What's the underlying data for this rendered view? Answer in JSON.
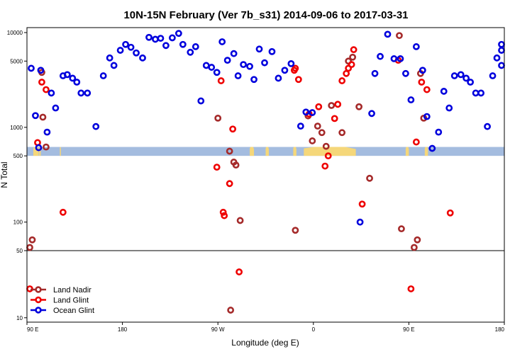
{
  "chart_data": {
    "type": "scatter",
    "title": "10N-15N February (Ver 7b_s31)   2014-09-06 to 2017-03-31",
    "xlabel": "Longitude (deg E)",
    "ylabel": "N Total",
    "x_ticks": [
      {
        "value": 90,
        "label": "90 E"
      },
      {
        "value": 180,
        "label": "180"
      },
      {
        "value": 270,
        "label": "90 W"
      },
      {
        "value": 360,
        "label": "0"
      },
      {
        "value": 450,
        "label": "90 E"
      },
      {
        "value": 540,
        "label": "180"
      }
    ],
    "xlim": [
      90,
      540
    ],
    "upper_panel": {
      "scale": "log",
      "ylim": [
        50,
        10000
      ],
      "y_ticks": [
        {
          "value": 50,
          "label": "50"
        },
        {
          "value": 100,
          "label": "100"
        },
        {
          "value": 500,
          "label": "500"
        },
        {
          "value": 1000,
          "label": "1000"
        },
        {
          "value": 5000,
          "label": "5000"
        },
        {
          "value": 10000,
          "label": "10000"
        }
      ]
    },
    "lower_panel": {
      "scale": "log",
      "ylim": [
        9,
        50
      ],
      "y_ticks": [
        {
          "value": 10,
          "label": "10"
        },
        {
          "value": 50,
          "label": "50"
        }
      ]
    },
    "map_strip": {
      "ocean_color": "#a4bcdf",
      "land_color": "#f5d77a",
      "y_range": [
        500,
        600
      ]
    },
    "legend": {
      "position": "bottom-left"
    },
    "series": [
      {
        "name": "Land Nadir",
        "color": "#a52a2a",
        "points": [
          [
            90,
            54
          ],
          [
            95,
            65
          ],
          [
            104,
            3800
          ],
          [
            105,
            1280
          ],
          [
            108,
            620
          ],
          [
            270,
            1250
          ],
          [
            281,
            560
          ],
          [
            285,
            430
          ],
          [
            287,
            400
          ],
          [
            291,
            104
          ],
          [
            282,
            12
          ],
          [
            343,
            82
          ],
          [
            355,
            1320
          ],
          [
            359,
            720
          ],
          [
            364,
            1030
          ],
          [
            368,
            880
          ],
          [
            372,
            630
          ],
          [
            377,
            1700
          ],
          [
            387,
            880
          ],
          [
            393,
            5000
          ],
          [
            397,
            5500
          ],
          [
            403,
            1650
          ],
          [
            413,
            290
          ],
          [
            441,
            9300
          ],
          [
            443,
            85
          ],
          [
            455,
            54
          ],
          [
            458,
            65
          ],
          [
            461,
            3700
          ],
          [
            464,
            1250
          ]
        ]
      },
      {
        "name": "Land Glint",
        "color": "#ee0000",
        "points": [
          [
            89,
            20
          ],
          [
            100,
            690
          ],
          [
            104,
            3000
          ],
          [
            108,
            2500
          ],
          [
            124,
            127
          ],
          [
            269,
            380
          ],
          [
            273,
            3100
          ],
          [
            275,
            127
          ],
          [
            276,
            117
          ],
          [
            284,
            960
          ],
          [
            281,
            255
          ],
          [
            290,
            30
          ],
          [
            342,
            4000
          ],
          [
            343,
            4200
          ],
          [
            346,
            3200
          ],
          [
            356,
            1380
          ],
          [
            365,
            1650
          ],
          [
            371,
            390
          ],
          [
            374,
            500
          ],
          [
            380,
            1240
          ],
          [
            383,
            1750
          ],
          [
            387,
            3100
          ],
          [
            391,
            3700
          ],
          [
            393,
            4200
          ],
          [
            396,
            4600
          ],
          [
            398,
            6600
          ],
          [
            406,
            155
          ],
          [
            440,
            5100
          ],
          [
            452,
            20
          ],
          [
            457,
            700
          ],
          [
            462,
            3000
          ],
          [
            467,
            2500
          ],
          [
            489,
            125
          ]
        ]
      },
      {
        "name": "Ocean Glint",
        "color": "#0000dd",
        "points": [
          [
            94,
            4200
          ],
          [
            98,
            1330
          ],
          [
            101,
            610
          ],
          [
            103,
            4000
          ],
          [
            109,
            890
          ],
          [
            113,
            2300
          ],
          [
            117,
            1600
          ],
          [
            124,
            3500
          ],
          [
            128,
            3600
          ],
          [
            133,
            3300
          ],
          [
            137,
            3000
          ],
          [
            141,
            2300
          ],
          [
            147,
            2300
          ],
          [
            155,
            1020
          ],
          [
            162,
            3500
          ],
          [
            168,
            5400
          ],
          [
            172,
            4500
          ],
          [
            178,
            6500
          ],
          [
            183,
            7500
          ],
          [
            188,
            7000
          ],
          [
            193,
            6100
          ],
          [
            199,
            5400
          ],
          [
            205,
            8900
          ],
          [
            211,
            8500
          ],
          [
            216,
            8700
          ],
          [
            221,
            7300
          ],
          [
            227,
            8800
          ],
          [
            233,
            9800
          ],
          [
            237,
            7500
          ],
          [
            244,
            6200
          ],
          [
            249,
            7100
          ],
          [
            254,
            1900
          ],
          [
            259,
            4500
          ],
          [
            264,
            4300
          ],
          [
            269,
            3800
          ],
          [
            274,
            8000
          ],
          [
            279,
            5100
          ],
          [
            285,
            6000
          ],
          [
            289,
            3500
          ],
          [
            294,
            4600
          ],
          [
            300,
            4400
          ],
          [
            304,
            3200
          ],
          [
            309,
            6700
          ],
          [
            314,
            4800
          ],
          [
            321,
            6300
          ],
          [
            327,
            3300
          ],
          [
            333,
            4000
          ],
          [
            339,
            4700
          ],
          [
            348,
            1030
          ],
          [
            353,
            1450
          ],
          [
            359,
            1430
          ],
          [
            404,
            100
          ],
          [
            415,
            1400
          ],
          [
            418,
            3700
          ],
          [
            423,
            5600
          ],
          [
            430,
            9600
          ],
          [
            436,
            5300
          ],
          [
            442,
            5300
          ],
          [
            447,
            3700
          ],
          [
            452,
            1950
          ],
          [
            457,
            7100
          ],
          [
            463,
            4000
          ],
          [
            467,
            1300
          ],
          [
            472,
            600
          ],
          [
            478,
            890
          ],
          [
            483,
            2400
          ],
          [
            488,
            1600
          ],
          [
            493,
            3500
          ],
          [
            499,
            3600
          ],
          [
            504,
            3300
          ],
          [
            508,
            3000
          ],
          [
            513,
            2300
          ],
          [
            518,
            2300
          ],
          [
            524,
            1020
          ],
          [
            529,
            3500
          ],
          [
            533,
            5400
          ],
          [
            538,
            4500
          ],
          [
            542,
            6500
          ],
          [
            546,
            7500
          ]
        ]
      }
    ]
  }
}
